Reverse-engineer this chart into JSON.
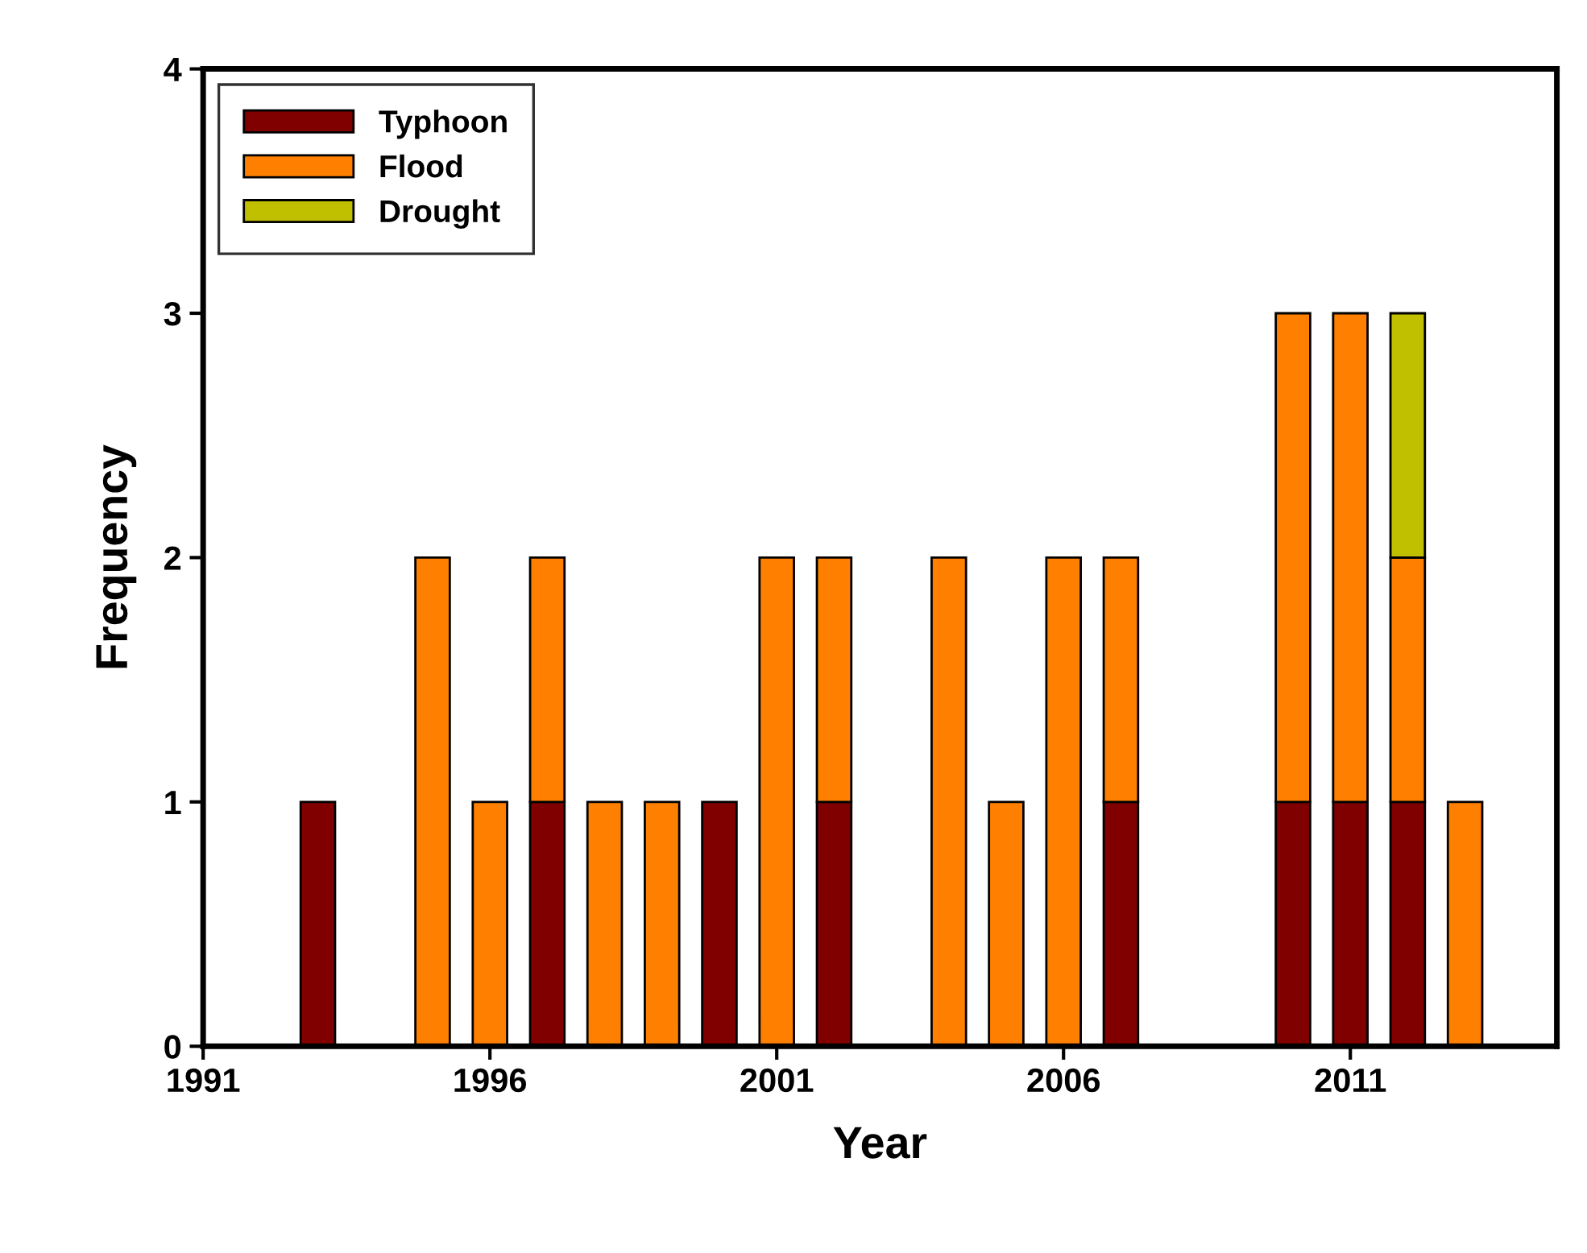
{
  "chart_data": {
    "type": "bar",
    "stacked": true,
    "xlabel": "Year",
    "ylabel": "Frequency",
    "x": [
      1993,
      1995,
      1996,
      1997,
      1998,
      1999,
      2000,
      2001,
      2002,
      2004,
      2005,
      2006,
      2007,
      2010,
      2011,
      2012,
      2013
    ],
    "series": [
      {
        "name": "Typhoon",
        "color": "#800000",
        "values": [
          1,
          null,
          null,
          1,
          null,
          null,
          1,
          null,
          1,
          null,
          null,
          null,
          1,
          1,
          1,
          1,
          null
        ]
      },
      {
        "name": "Flood",
        "color": "#ff8000",
        "values": [
          null,
          2,
          1,
          1,
          1,
          1,
          null,
          2,
          1,
          2,
          1,
          2,
          1,
          2,
          2,
          1,
          1
        ]
      },
      {
        "name": "Drought",
        "color": "#c0c000",
        "values": [
          null,
          null,
          null,
          null,
          null,
          null,
          null,
          null,
          null,
          null,
          null,
          null,
          null,
          null,
          null,
          1,
          null
        ]
      }
    ],
    "xlim": [
      1991,
      2014.6
    ],
    "xticks": [
      1991,
      1996,
      2001,
      2006,
      2011
    ],
    "ylim": [
      0,
      4
    ],
    "yticks": [
      0,
      1,
      2,
      3,
      4
    ],
    "grid": false,
    "legend": "top left"
  }
}
